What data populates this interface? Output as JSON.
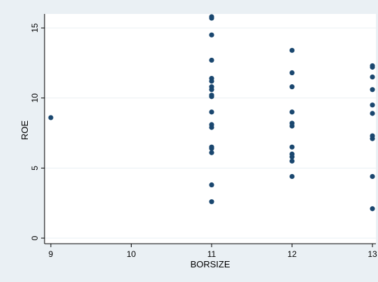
{
  "chart_data": {
    "type": "scatter",
    "title": "",
    "xlabel": "BORSIZE",
    "ylabel": "ROE",
    "xlim": [
      9,
      13
    ],
    "ylim": [
      0,
      16
    ],
    "xticks": [
      9,
      10,
      11,
      12,
      13
    ],
    "yticks": [
      0,
      5,
      10,
      15
    ],
    "xtick_labels": [
      "9",
      "10",
      "11",
      "12",
      "13"
    ],
    "ytick_labels": [
      "0",
      "5",
      "10",
      "15"
    ],
    "grid": "horizontal",
    "colors": {
      "background": "#eaf0f4",
      "plot_background": "#ffffff",
      "marker": "#1a476f",
      "grid": "#eaf0f4"
    },
    "series": [
      {
        "points": [
          {
            "x": 9,
            "y": 8.6
          },
          {
            "x": 11,
            "y": 15.8
          },
          {
            "x": 11,
            "y": 15.7
          },
          {
            "x": 11,
            "y": 14.5
          },
          {
            "x": 11,
            "y": 12.7
          },
          {
            "x": 11,
            "y": 11.4
          },
          {
            "x": 11,
            "y": 11.2
          },
          {
            "x": 11,
            "y": 10.8
          },
          {
            "x": 11,
            "y": 10.6
          },
          {
            "x": 11,
            "y": 10.2
          },
          {
            "x": 11,
            "y": 10.1
          },
          {
            "x": 11,
            "y": 9.0
          },
          {
            "x": 11,
            "y": 8.1
          },
          {
            "x": 11,
            "y": 7.9
          },
          {
            "x": 11,
            "y": 6.5
          },
          {
            "x": 11,
            "y": 6.4
          },
          {
            "x": 11,
            "y": 6.1
          },
          {
            "x": 11,
            "y": 3.8
          },
          {
            "x": 11,
            "y": 2.6
          },
          {
            "x": 12,
            "y": 13.4
          },
          {
            "x": 12,
            "y": 11.8
          },
          {
            "x": 12,
            "y": 10.8
          },
          {
            "x": 12,
            "y": 9.0
          },
          {
            "x": 12,
            "y": 8.2
          },
          {
            "x": 12,
            "y": 8.0
          },
          {
            "x": 12,
            "y": 6.5
          },
          {
            "x": 12,
            "y": 6.0
          },
          {
            "x": 12,
            "y": 5.8
          },
          {
            "x": 12,
            "y": 5.5
          },
          {
            "x": 12,
            "y": 4.4
          },
          {
            "x": 13,
            "y": 12.3
          },
          {
            "x": 13,
            "y": 12.2
          },
          {
            "x": 13,
            "y": 11.5
          },
          {
            "x": 13,
            "y": 10.6
          },
          {
            "x": 13,
            "y": 9.5
          },
          {
            "x": 13,
            "y": 8.9
          },
          {
            "x": 13,
            "y": 7.3
          },
          {
            "x": 13,
            "y": 7.1
          },
          {
            "x": 13,
            "y": 4.4
          },
          {
            "x": 13,
            "y": 2.1
          }
        ]
      }
    ]
  }
}
